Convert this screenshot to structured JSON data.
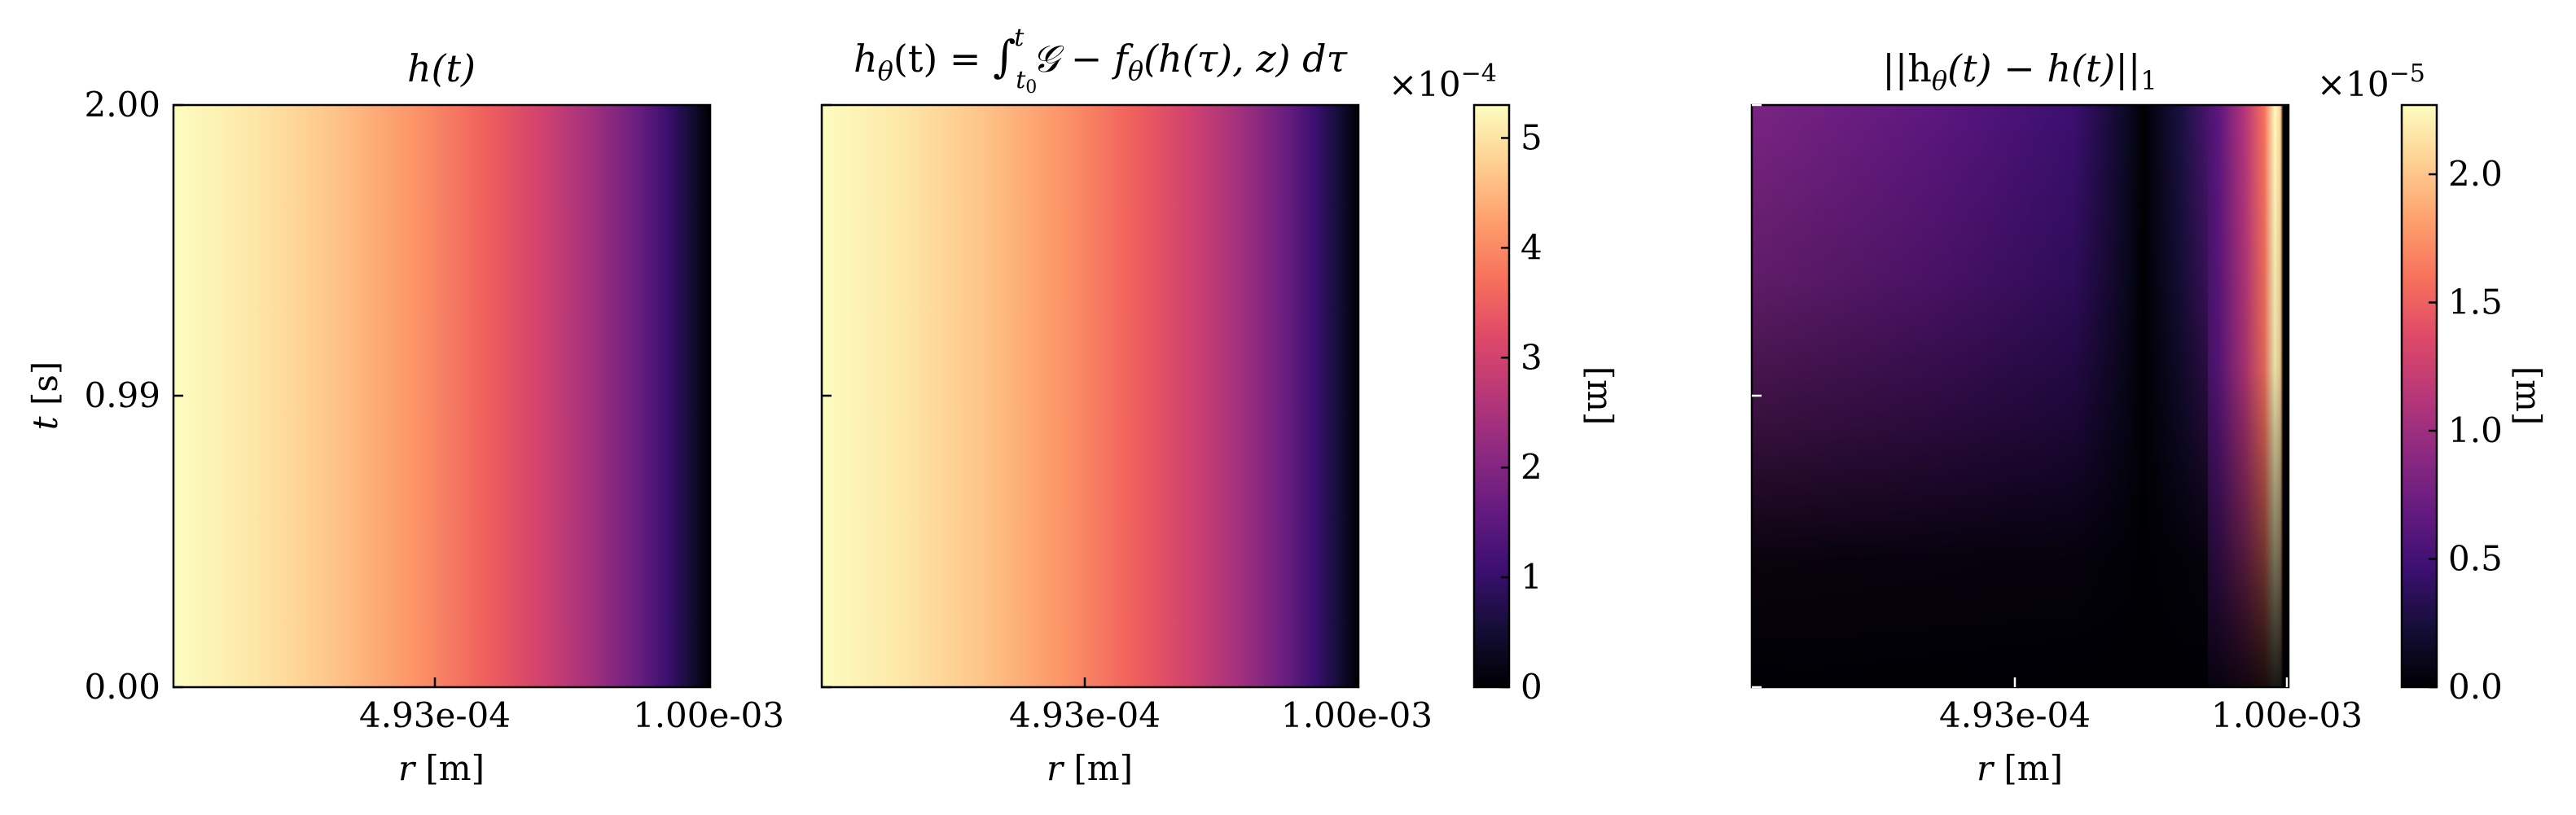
{
  "chart_data": [
    {
      "type": "heatmap",
      "title": "h(t)",
      "xlabel": "r [m]",
      "ylabel": "t [s]",
      "xticks": [
        "4.93e-04",
        "1.00e-03"
      ],
      "yticks": [
        "0.00",
        "0.99",
        "2.00"
      ],
      "colormap": "magma",
      "field": "decreasing in r, constant in t",
      "shared_colorbar": 0
    },
    {
      "type": "heatmap",
      "title": "hθ(t) = ∫t0t 𝒢 − fθ(h(τ), z) dτ",
      "xlabel": "r [m]",
      "xticks": [
        "4.93e-04",
        "1.00e-03"
      ],
      "colormap": "magma",
      "field": "decreasing in r, constant in t"
    },
    {
      "type": "heatmap",
      "title": "||hθ(t) − h(t)||1",
      "xlabel": "r [m]",
      "xticks": [
        "4.93e-04",
        "1.00e-03"
      ],
      "colormap": "magma",
      "field": "error grows with t; peak near r = 1.00e-03"
    }
  ],
  "colorbars": [
    {
      "multiplier": "×10",
      "exponent": "−4",
      "label": "[m]",
      "ticks": [
        "0",
        "1",
        "2",
        "3",
        "4",
        "5"
      ],
      "range": [
        0,
        5.3
      ]
    },
    {
      "multiplier": "×10",
      "exponent": "−5",
      "label": "[m]",
      "ticks": [
        "0.0",
        "0.5",
        "1.0",
        "1.5",
        "2.0"
      ],
      "range": [
        0,
        2.27
      ]
    }
  ],
  "labels": {
    "panel1_title": "h(t)",
    "panel2_title": {
      "h": "h",
      "sub": "θ",
      "rest": "(t) = ",
      "int": "∫",
      "lower": "t",
      "lower_sub": "0",
      "upper": "t",
      "G": "𝒢",
      "f": " − f",
      "fsub": "θ",
      "tail": "(h(τ), z) dτ"
    },
    "panel3_title": {
      "open": "||h",
      "sub": "θ",
      "mid": "(t) − h(t)||",
      "norm_sub": "1"
    },
    "xlabel": {
      "var": "r",
      "unit": "[m]"
    },
    "ylabel": {
      "var": "t",
      "unit": "[s]"
    }
  }
}
